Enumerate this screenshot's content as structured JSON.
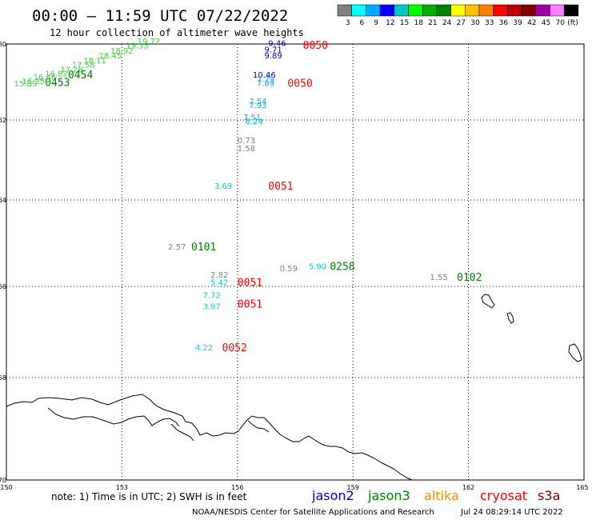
{
  "header": {
    "title": "00:00 – 11:59 UTC 07/22/2022",
    "subtitle": "12 hour collection of altimeter wave heights"
  },
  "legend": {
    "colors": [
      "#808080",
      "#00ffff",
      "#00aaff",
      "#0000ff",
      "#00c8c8",
      "#00ff00",
      "#00b000",
      "#008000",
      "#ffff00",
      "#ffc000",
      "#ff8000",
      "#ff0000",
      "#c00000",
      "#800000",
      "#a000a0",
      "#ff80ff",
      "#000000"
    ],
    "labels": [
      "3",
      "6",
      "9",
      "12",
      "15",
      "18",
      "21",
      "24",
      "27",
      "30",
      "33",
      "36",
      "39",
      "42",
      "45",
      "70",
      "(ft)"
    ]
  },
  "axes": {
    "x_ticks": [
      "150",
      "153",
      "156",
      "159",
      "162",
      "165"
    ],
    "y_ticks": [
      "-60",
      "-62",
      "-64",
      "-66",
      "-68",
      "-70"
    ]
  },
  "wave_labels": [
    {
      "text": "9.46",
      "lon": 156.8,
      "lat": -60.05,
      "color": "#0000cc"
    },
    {
      "text": "9.71",
      "lon": 156.7,
      "lat": -60.22,
      "color": "#0000cc"
    },
    {
      "text": "9.89",
      "lon": 156.7,
      "lat": -60.38,
      "color": "#0000cc"
    },
    {
      "text": "10.46",
      "lon": 156.4,
      "lat": -60.88,
      "color": "#0000cc"
    },
    {
      "text": "7.79",
      "lon": 156.5,
      "lat": -61.0,
      "color": "#00aaff"
    },
    {
      "text": "7.89",
      "lon": 156.5,
      "lat": -61.1,
      "color": "#00aaff"
    },
    {
      "text": "7.54",
      "lon": 156.3,
      "lat": -61.58,
      "color": "#00b8e0"
    },
    {
      "text": "7.93",
      "lon": 156.3,
      "lat": -61.68,
      "color": "#00b8e0"
    },
    {
      "text": "7.51",
      "lon": 156.15,
      "lat": -62.0,
      "color": "#00b8e0"
    },
    {
      "text": "8.24",
      "lon": 156.2,
      "lat": -62.1,
      "color": "#00b8e0"
    },
    {
      "text": "0.73",
      "lon": 156.0,
      "lat": -62.58,
      "color": "#808080"
    },
    {
      "text": "1.58",
      "lon": 156.0,
      "lat": -62.78,
      "color": "#808080"
    },
    {
      "text": "3.69",
      "lon": 155.4,
      "lat": -63.72,
      "color": "#00d0d0"
    },
    {
      "text": "2.57",
      "lon": 154.2,
      "lat": -65.15,
      "color": "#808080"
    },
    {
      "text": "0.59",
      "lon": 157.1,
      "lat": -65.65,
      "color": "#808080"
    },
    {
      "text": "5.90",
      "lon": 157.85,
      "lat": -65.6,
      "color": "#00d0d0"
    },
    {
      "text": "2.82",
      "lon": 155.3,
      "lat": -65.8,
      "color": "#808080"
    },
    {
      "text": "5.42",
      "lon": 155.3,
      "lat": -65.97,
      "color": "#00d0d0"
    },
    {
      "text": "7.72",
      "lon": 155.1,
      "lat": -66.25,
      "color": "#00d0d0"
    },
    {
      "text": "3.97",
      "lon": 155.1,
      "lat": -66.5,
      "color": "#00d0d0"
    },
    {
      "text": "4.22",
      "lon": 154.9,
      "lat": -67.4,
      "color": "#00d0d0"
    },
    {
      "text": "1.55",
      "lon": 161.0,
      "lat": -65.85,
      "color": "#808080"
    },
    {
      "text": "15.89",
      "lon": 150.2,
      "lat": -61.12,
      "color": "#40d040"
    },
    {
      "text": "16.35",
      "lon": 150.4,
      "lat": -61.05,
      "color": "#40d040"
    },
    {
      "text": "16.46",
      "lon": 150.7,
      "lat": -60.95,
      "color": "#40d040"
    },
    {
      "text": "16.82",
      "lon": 151.0,
      "lat": -60.85,
      "color": "#40d040"
    },
    {
      "text": "17.26",
      "lon": 151.4,
      "lat": -60.75,
      "color": "#40d040"
    },
    {
      "text": "17.58",
      "lon": 151.7,
      "lat": -60.62,
      "color": "#40d040"
    },
    {
      "text": "18.11",
      "lon": 152.0,
      "lat": -60.5,
      "color": "#40d040"
    },
    {
      "text": "18.45",
      "lon": 152.4,
      "lat": -60.38,
      "color": "#40d040"
    },
    {
      "text": "18.92",
      "lon": 152.7,
      "lat": -60.25,
      "color": "#40d040"
    },
    {
      "text": "19.33",
      "lon": 153.1,
      "lat": -60.12,
      "color": "#40d040"
    },
    {
      "text": "19.72",
      "lon": 153.4,
      "lat": -60.0,
      "color": "#40d040"
    }
  ],
  "time_labels": [
    {
      "text": "0050",
      "lon": 157.7,
      "lat": -60.1,
      "color": "#ff0000"
    },
    {
      "text": "0050",
      "lon": 157.3,
      "lat": -61.1,
      "color": "#ff0000"
    },
    {
      "text": "0051",
      "lon": 156.8,
      "lat": -63.72,
      "color": "#ff0000"
    },
    {
      "text": "0101",
      "lon": 154.8,
      "lat": -65.15,
      "color": "#008000"
    },
    {
      "text": "0258",
      "lon": 158.4,
      "lat": -65.6,
      "color": "#008000"
    },
    {
      "text": "0051",
      "lon": 156.0,
      "lat": -65.97,
      "color": "#ff0000"
    },
    {
      "text": "0051",
      "lon": 156.0,
      "lat": -66.45,
      "color": "#ff0000"
    },
    {
      "text": "0052",
      "lon": 155.6,
      "lat": -67.4,
      "color": "#ff0000"
    },
    {
      "text": "0102",
      "lon": 161.7,
      "lat": -65.85,
      "color": "#008000"
    },
    {
      "text": "0454",
      "lon": 151.6,
      "lat": -60.88,
      "color": "#008000"
    },
    {
      "text": "0453",
      "lon": 151.0,
      "lat": -61.08,
      "color": "#008000"
    }
  ],
  "footer": {
    "note": "note:  1) Time is in UTC;  2) SWH is in feet",
    "satellites": [
      {
        "name": "jason2",
        "color": "#0000cc"
      },
      {
        "name": "jason3",
        "color": "#008000"
      },
      {
        "name": "altika",
        "color": "#ff8c00"
      },
      {
        "name": "cryosat",
        "color": "#ff0000"
      },
      {
        "name": "s3a",
        "color": "#800000"
      }
    ],
    "credit": "NOAA/NESDIS Center for Satellite Applications and Research",
    "timestamp": "Jul 24 08:29:14 UTC 2022"
  }
}
